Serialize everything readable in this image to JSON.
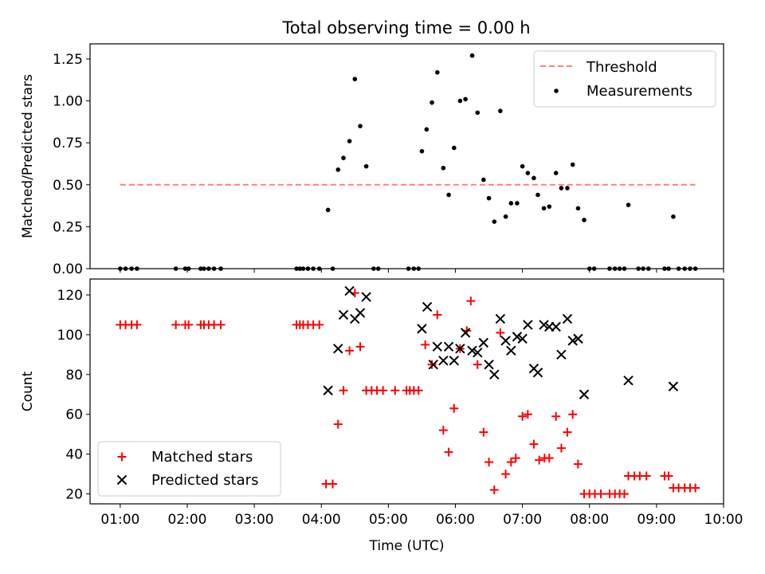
{
  "figure": {
    "title": "Total observing time = 0.00 h"
  },
  "chart_data": [
    {
      "type": "scatter",
      "ylabel": "Matched/Predicted stars",
      "xlabel": "",
      "xlim": [
        0.55,
        10.0
      ],
      "ylim": [
        0.0,
        1.34
      ],
      "y_ticks": [
        0.0,
        0.25,
        0.5,
        0.75,
        1.0,
        1.25
      ],
      "y_tick_labels": [
        "0.00",
        "0.25",
        "0.50",
        "0.75",
        "1.00",
        "1.25"
      ],
      "x_ticks": [
        1,
        2,
        3,
        4,
        5,
        6,
        7,
        8,
        9,
        10
      ],
      "threshold": {
        "name": "Threshold",
        "value": 0.5,
        "x_range": [
          1.0,
          9.58
        ],
        "color": "#ff7f7f"
      },
      "legend": {
        "position": "upper right",
        "entries": [
          "Threshold",
          "Measurements"
        ]
      },
      "series": [
        {
          "name": "Measurements",
          "color": "#000000",
          "x": [
            1.0,
            1.08,
            1.17,
            1.25,
            1.83,
            1.97,
            2.02,
            2.2,
            2.25,
            2.32,
            2.4,
            2.5,
            3.63,
            3.68,
            3.73,
            3.8,
            3.88,
            3.97,
            4.17,
            4.1,
            4.25,
            4.33,
            4.42,
            4.5,
            4.58,
            4.67,
            4.78,
            4.85,
            5.3,
            5.38,
            5.45,
            5.5,
            5.57,
            5.65,
            5.73,
            5.82,
            5.9,
            5.98,
            6.07,
            6.15,
            6.25,
            6.33,
            6.42,
            6.5,
            6.58,
            6.67,
            6.75,
            6.83,
            6.92,
            7.0,
            7.08,
            7.17,
            7.23,
            7.32,
            7.4,
            7.5,
            7.58,
            7.67,
            7.75,
            7.83,
            7.92,
            8.0,
            8.07,
            8.3,
            8.38,
            8.45,
            8.52,
            8.58,
            8.73,
            8.8,
            8.88,
            9.12,
            9.18,
            9.25,
            9.33,
            9.42,
            9.5,
            9.58
          ],
          "y": [
            0,
            0,
            0,
            0,
            0,
            0,
            0,
            0,
            0,
            0,
            0,
            0,
            0,
            0,
            0,
            0,
            0,
            0,
            0,
            0.35,
            0.59,
            0.66,
            0.76,
            1.13,
            0.85,
            0.61,
            0,
            0,
            0,
            0,
            0,
            0.7,
            0.83,
            0.99,
            1.17,
            0.6,
            0.44,
            0.72,
            1.0,
            1.01,
            1.27,
            0.93,
            0.53,
            0.42,
            0.28,
            0.94,
            0.31,
            0.39,
            0.39,
            0.61,
            0.57,
            0.54,
            0.44,
            0.36,
            0.37,
            0.57,
            0.48,
            0.48,
            0.62,
            0.36,
            0.29,
            0,
            0,
            0,
            0,
            0,
            0,
            0.38,
            0,
            0,
            0,
            0,
            0,
            0.31,
            0,
            0,
            0,
            0
          ]
        }
      ]
    },
    {
      "type": "scatter",
      "ylabel": "Count",
      "xlabel": "Time (UTC)",
      "xlim": [
        0.55,
        10.0
      ],
      "ylim": [
        15,
        128
      ],
      "y_ticks": [
        20,
        40,
        60,
        80,
        100,
        120
      ],
      "y_tick_labels": [
        "20",
        "40",
        "60",
        "80",
        "100",
        "120"
      ],
      "x_ticks": [
        1,
        2,
        3,
        4,
        5,
        6,
        7,
        8,
        9,
        10
      ],
      "x_tick_labels": [
        "01:00",
        "02:00",
        "03:00",
        "04:00",
        "05:00",
        "06:00",
        "07:00",
        "08:00",
        "09:00",
        "10:00"
      ],
      "legend": {
        "position": "lower left",
        "entries": [
          "Matched stars",
          "Predicted stars"
        ]
      },
      "series": [
        {
          "name": "Matched stars",
          "color": "#ff0000",
          "marker": "+",
          "x": [
            1.0,
            1.08,
            1.17,
            1.25,
            1.83,
            1.97,
            2.02,
            2.2,
            2.25,
            2.32,
            2.4,
            2.5,
            3.63,
            3.68,
            3.73,
            3.8,
            3.88,
            3.97,
            4.07,
            4.17,
            4.25,
            4.33,
            4.42,
            4.5,
            4.58,
            4.67,
            4.75,
            4.83,
            4.92,
            5.1,
            5.27,
            5.32,
            5.38,
            5.45,
            5.55,
            5.65,
            5.73,
            5.82,
            5.9,
            5.98,
            6.07,
            6.17,
            6.23,
            6.33,
            6.42,
            6.5,
            6.58,
            6.67,
            6.75,
            6.83,
            6.9,
            7.0,
            7.08,
            7.17,
            7.25,
            7.33,
            7.4,
            7.5,
            7.58,
            7.67,
            7.75,
            7.83,
            7.92,
            8.0,
            8.08,
            8.17,
            8.3,
            8.38,
            8.45,
            8.52,
            8.58,
            8.67,
            8.75,
            8.85,
            9.12,
            9.18,
            9.25,
            9.33,
            9.42,
            9.5,
            9.58
          ],
          "y": [
            105,
            105,
            105,
            105,
            105,
            105,
            105,
            105,
            105,
            105,
            105,
            105,
            105,
            105,
            105,
            105,
            105,
            105,
            25,
            25,
            55,
            72,
            92,
            121,
            94,
            72,
            72,
            72,
            72,
            72,
            72,
            72,
            72,
            72,
            95,
            85,
            110,
            52,
            41,
            63,
            93,
            102,
            117,
            85,
            51,
            36,
            22,
            101,
            30,
            36,
            38,
            59,
            60,
            45,
            37,
            38,
            38,
            59,
            43,
            51,
            60,
            35,
            20,
            20,
            20,
            20,
            20,
            20,
            20,
            20,
            29,
            29,
            29,
            29,
            29,
            29,
            23,
            23,
            23,
            23,
            23
          ]
        },
        {
          "name": "Predicted stars",
          "color": "#000000",
          "marker": "x",
          "x": [
            4.1,
            4.25,
            4.33,
            4.42,
            4.5,
            4.58,
            4.67,
            5.5,
            5.58,
            5.67,
            5.73,
            5.82,
            5.9,
            5.98,
            6.07,
            6.15,
            6.25,
            6.33,
            6.42,
            6.5,
            6.58,
            6.67,
            6.75,
            6.83,
            6.92,
            7.0,
            7.08,
            7.17,
            7.23,
            7.32,
            7.4,
            7.5,
            7.58,
            7.67,
            7.75,
            7.83,
            7.92,
            8.58,
            9.25
          ],
          "y": [
            72,
            93,
            110,
            122,
            108,
            111,
            119,
            103,
            114,
            85,
            94,
            87,
            94,
            87,
            93,
            101,
            92,
            91,
            96,
            85,
            80,
            108,
            97,
            92,
            99,
            98,
            105,
            83,
            81,
            105,
            104,
            104,
            90,
            108,
            97,
            98,
            70,
            77,
            74
          ]
        }
      ]
    }
  ]
}
